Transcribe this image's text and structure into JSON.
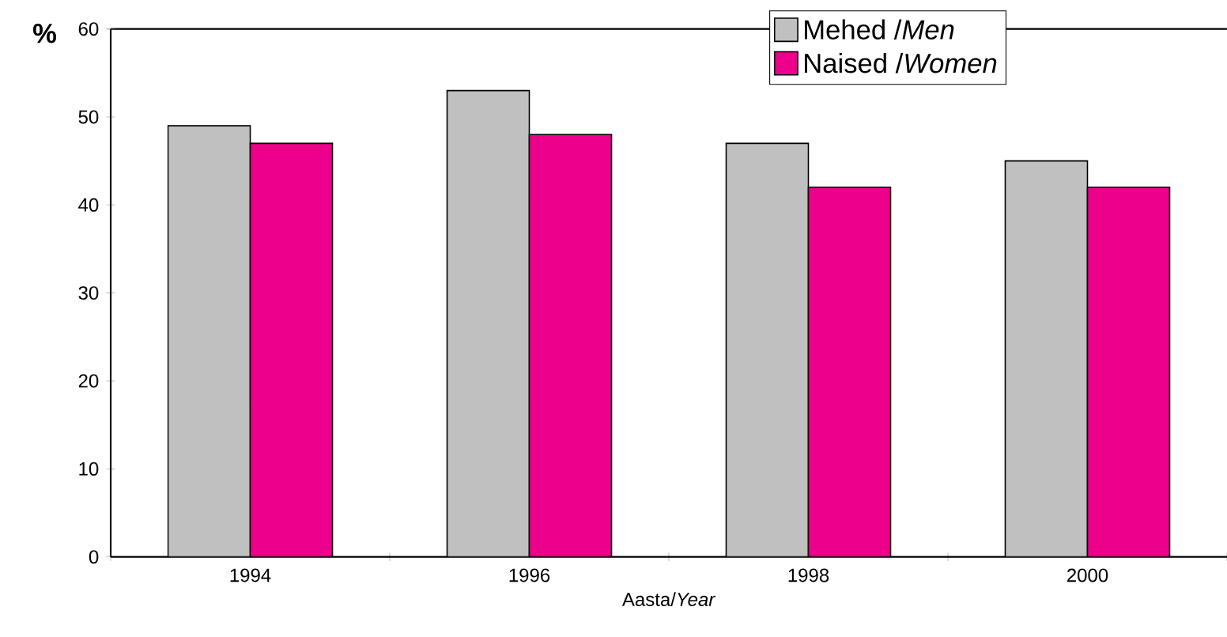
{
  "chart_data": {
    "type": "bar",
    "ylabel": "%",
    "xlabel": "Aasta/*Year*",
    "categories": [
      "1994",
      "1996",
      "1998",
      "2000"
    ],
    "series": [
      {
        "name": "Mehed /*Men*",
        "color": "#c0c0c0",
        "values": [
          49,
          53,
          47,
          45
        ]
      },
      {
        "name": "Naised /*Women*",
        "color": "#ec008c",
        "values": [
          47,
          48,
          42,
          42
        ]
      }
    ],
    "ylim": [
      0,
      60
    ],
    "yticks": [
      0,
      10,
      20,
      30,
      40,
      50,
      60
    ],
    "legend": "top right",
    "grid": false
  }
}
